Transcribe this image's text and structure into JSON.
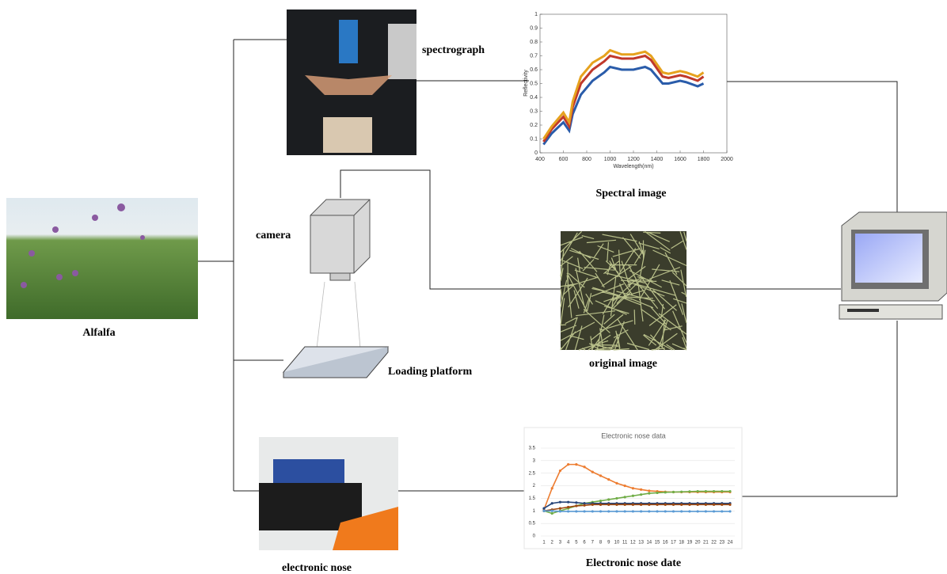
{
  "labels": {
    "alfalfa": "Alfalfa",
    "spectrograph": "spectrograph",
    "spectral_image": "Spectral image",
    "camera": "camera",
    "loading_platform": "Loading platform",
    "original_image": "original image",
    "electronic_nose": "electronic nose",
    "electronic_nose_date": "Electronic nose date"
  },
  "spectral_chart": {
    "type": "line",
    "xlabel": "Wavelength(nm)",
    "ylabel": "Reflectivity",
    "xlim": [
      400,
      2000
    ],
    "ylim": [
      0,
      1
    ],
    "xticks": [
      400,
      600,
      800,
      1000,
      1200,
      1400,
      1600,
      1800,
      2000
    ],
    "yticks": [
      0,
      0.1,
      0.2,
      0.3,
      0.4,
      0.5,
      0.6,
      0.7,
      0.8,
      0.9,
      1
    ],
    "x": [
      430,
      500,
      600,
      650,
      680,
      750,
      850,
      950,
      1000,
      1100,
      1200,
      1300,
      1350,
      1450,
      1500,
      1600,
      1650,
      1750,
      1800
    ],
    "series": [
      {
        "color": "#2a5caa",
        "values": [
          0.06,
          0.14,
          0.22,
          0.16,
          0.28,
          0.42,
          0.52,
          0.58,
          0.62,
          0.6,
          0.6,
          0.62,
          0.6,
          0.5,
          0.5,
          0.52,
          0.51,
          0.48,
          0.5
        ]
      },
      {
        "color": "#c0392b",
        "values": [
          0.08,
          0.17,
          0.26,
          0.19,
          0.33,
          0.5,
          0.6,
          0.66,
          0.7,
          0.68,
          0.68,
          0.7,
          0.67,
          0.55,
          0.54,
          0.56,
          0.55,
          0.52,
          0.55
        ]
      },
      {
        "color": "#e6a21e",
        "values": [
          0.1,
          0.19,
          0.29,
          0.22,
          0.37,
          0.55,
          0.65,
          0.7,
          0.74,
          0.71,
          0.71,
          0.73,
          0.7,
          0.58,
          0.57,
          0.59,
          0.58,
          0.55,
          0.58
        ]
      }
    ]
  },
  "nose_chart": {
    "type": "line",
    "title": "Electronic nose data",
    "categories": [
      "1",
      "2",
      "3",
      "4",
      "5",
      "6",
      "7",
      "8",
      "9",
      "10",
      "11",
      "12",
      "13",
      "14",
      "15",
      "16",
      "17",
      "18",
      "19",
      "20",
      "21",
      "22",
      "23",
      "24"
    ],
    "ylim": [
      0,
      3.5
    ],
    "yticks": [
      0,
      0.5,
      1,
      1.5,
      2,
      2.5,
      3,
      3.5
    ],
    "series": [
      {
        "color": "#ed7d31",
        "values": [
          1.05,
          1.9,
          2.6,
          2.85,
          2.85,
          2.75,
          2.55,
          2.4,
          2.25,
          2.1,
          2.0,
          1.9,
          1.85,
          1.8,
          1.78,
          1.76,
          1.75,
          1.75,
          1.75,
          1.75,
          1.75,
          1.75,
          1.75,
          1.75
        ]
      },
      {
        "color": "#70ad47",
        "values": [
          1.0,
          0.9,
          1.0,
          1.1,
          1.2,
          1.3,
          1.35,
          1.4,
          1.45,
          1.5,
          1.55,
          1.6,
          1.65,
          1.7,
          1.72,
          1.74,
          1.75,
          1.76,
          1.77,
          1.78,
          1.78,
          1.78,
          1.78,
          1.78
        ]
      },
      {
        "color": "#264478",
        "values": [
          1.1,
          1.3,
          1.35,
          1.35,
          1.33,
          1.3,
          1.3,
          1.3,
          1.3,
          1.3,
          1.3,
          1.3,
          1.3,
          1.3,
          1.3,
          1.3,
          1.3,
          1.3,
          1.3,
          1.3,
          1.3,
          1.3,
          1.3,
          1.3
        ]
      },
      {
        "color": "#9e480e",
        "values": [
          1.0,
          1.05,
          1.1,
          1.15,
          1.2,
          1.22,
          1.25,
          1.25,
          1.25,
          1.25,
          1.25,
          1.25,
          1.25,
          1.25,
          1.25,
          1.25,
          1.25,
          1.25,
          1.25,
          1.25,
          1.25,
          1.25,
          1.25,
          1.25
        ]
      },
      {
        "color": "#5b9bd5",
        "values": [
          1.0,
          1.0,
          0.98,
          0.98,
          0.98,
          0.98,
          0.98,
          0.98,
          0.98,
          0.98,
          0.98,
          0.98,
          0.98,
          0.98,
          0.98,
          0.98,
          0.98,
          0.98,
          0.98,
          0.98,
          0.98,
          0.98,
          0.98,
          0.98
        ]
      }
    ]
  }
}
